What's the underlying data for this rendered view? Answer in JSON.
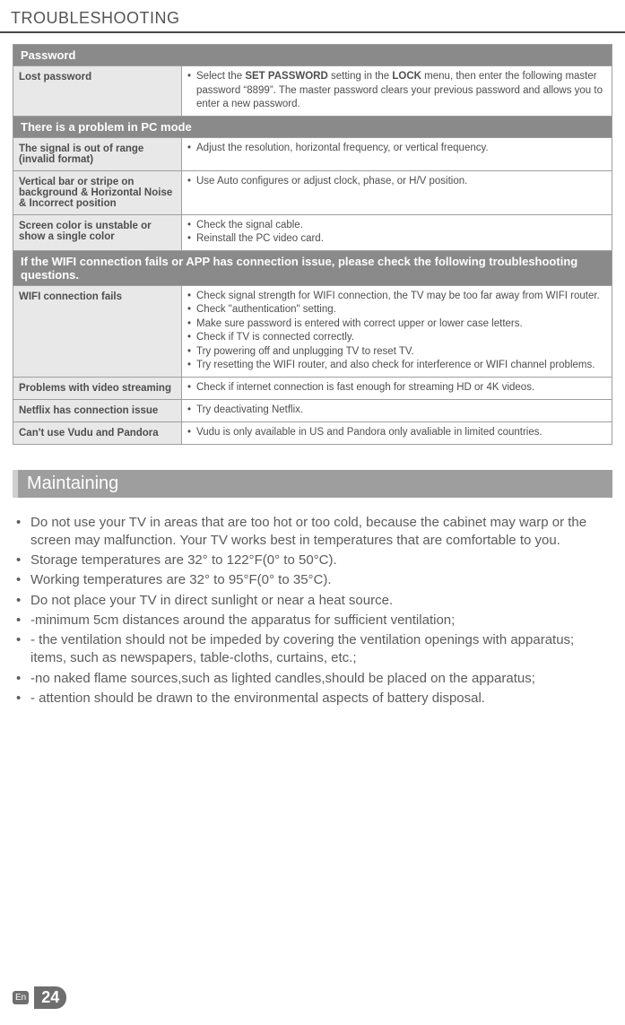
{
  "header": {
    "title": "TROUBLESHOOTING"
  },
  "sections": [
    {
      "head": "Password",
      "rows": [
        {
          "label": "Lost password",
          "items": [
            "Select the <b>SET PASSWORD</b> setting in the <b>LOCK</b> menu, then enter the following master password “8899”. The master password clears your previous password and allows you to enter a new password."
          ]
        }
      ]
    },
    {
      "head": "There is a problem in PC mode",
      "rows": [
        {
          "label": "The signal is out of range (invalid format)",
          "items": [
            "Adjust the resolution, horizontal frequency, or vertical frequency."
          ]
        },
        {
          "label": "Vertical bar or stripe on background & Horizontal Noise & Incorrect position",
          "items": [
            "Use Auto configures or adjust clock, phase, or H/V position."
          ]
        },
        {
          "label": "Screen color is unstable or show a single color",
          "items": [
            "Check the signal cable.",
            "Reinstall the PC video card."
          ]
        }
      ]
    },
    {
      "head": "If the WIFI connection fails or APP has connection issue, please check the following troubleshooting questions.",
      "rows": [
        {
          "label": "WIFI connection fails",
          "items": [
            "Check signal strength for WIFI connection, the TV may be too far away from WIFI router.",
            "Check \"authentication\" setting.",
            "Make sure password is entered with correct upper or lower case letters.",
            "Check if TV is connected correctly.",
            "Try powering off and unplugging TV to reset TV.",
            "Try resetting the WIFI router, and also check for interference or WIFI channel problems."
          ]
        },
        {
          "label": "Problems with video streaming",
          "items": [
            "Check if internet connection is fast enough for streaming HD or 4K videos."
          ]
        },
        {
          "label": "Netflix has connection issue",
          "items": [
            "Try deactivating Netflix."
          ]
        },
        {
          "label": "Can't use Vudu and Pandora",
          "items": [
            "Vudu is only available in US and Pandora only avaliable in limited countries."
          ]
        }
      ]
    }
  ],
  "maintaining": {
    "head": "Maintaining",
    "items": [
      "Do not use your TV in areas that are too hot or too cold, because the cabinet may warp or the screen may malfunction. Your TV works best in temperatures that are comfortable to you.",
      "Storage temperatures are 32° to 122°F(0° to 50°C).",
      "Working temperatures are 32° to 95°F(0° to 35°C).",
      "Do not place your TV in direct sunlight or near a heat source.",
      "-minimum 5cm distances around the apparatus for sufficient ventilation;",
      "- the ventilation should not be impeded by covering the ventilation openings with apparatus;  items, such as newspapers, table-cloths, curtains, etc.;",
      " -no naked flame sources,such as lighted candles,should be placed on the apparatus;",
      "- attention should be drawn to the environmental aspects of battery disposal."
    ]
  },
  "footer": {
    "lang": "En",
    "page": "24"
  },
  "colors": {
    "section_head_bg": "#8a8a8a",
    "row_label_bg": "#e8e8e8",
    "maint_head_bg": "#9e9e9e",
    "text": "#5c5c5c",
    "header_line": "#4a4a4a"
  }
}
